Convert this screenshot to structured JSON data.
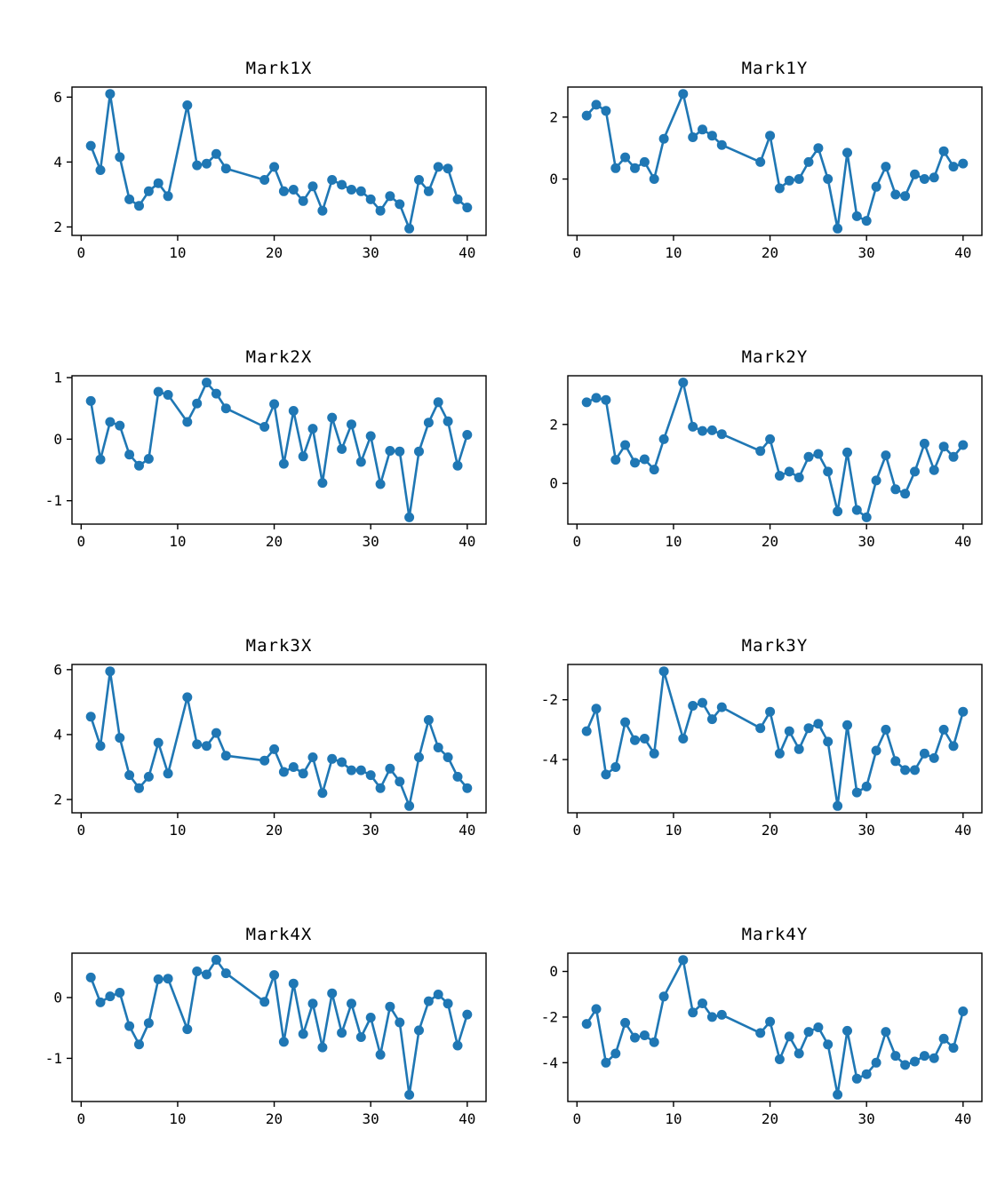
{
  "page": {
    "background": "#ffffff"
  },
  "style": {
    "line_color": "#1f77b4",
    "axis_color": "#000000",
    "text_color": "#000000"
  },
  "chart_data": [
    {
      "type": "line",
      "title": "Mark1X",
      "x": [
        1,
        2,
        3,
        4,
        5,
        6,
        7,
        8,
        9,
        11,
        12,
        13,
        14,
        15,
        19,
        20,
        21,
        22,
        23,
        24,
        25,
        26,
        27,
        28,
        29,
        30,
        31,
        32,
        33,
        34,
        35,
        36,
        37,
        38,
        39,
        40
      ],
      "values": [
        4.5,
        3.75,
        6.1,
        4.15,
        2.85,
        2.65,
        3.1,
        3.35,
        2.95,
        5.75,
        3.9,
        3.95,
        4.25,
        3.8,
        3.45,
        3.85,
        3.1,
        3.15,
        2.8,
        3.25,
        2.5,
        3.45,
        3.3,
        3.15,
        3.1,
        2.85,
        2.5,
        2.95,
        2.7,
        1.95,
        3.45,
        3.1,
        3.85,
        3.8,
        2.85,
        2.6
      ],
      "xticks": [
        0,
        10,
        20,
        30,
        40
      ],
      "yticks": [
        2,
        4,
        6
      ],
      "xlim": [
        -0.95,
        41.95
      ],
      "ylim": [
        1.74,
        6.31
      ],
      "xlabel": "",
      "ylabel": "",
      "grid": false,
      "legend": null
    },
    {
      "type": "line",
      "title": "Mark1Y",
      "x": [
        1,
        2,
        3,
        4,
        5,
        6,
        7,
        8,
        9,
        11,
        12,
        13,
        14,
        15,
        19,
        20,
        21,
        22,
        23,
        24,
        25,
        26,
        27,
        28,
        29,
        30,
        31,
        32,
        33,
        34,
        35,
        36,
        37,
        38,
        39,
        40
      ],
      "values": [
        2.05,
        2.4,
        2.2,
        0.35,
        0.7,
        0.35,
        0.55,
        0.0,
        1.3,
        2.75,
        1.35,
        1.6,
        1.4,
        1.1,
        0.55,
        1.4,
        -0.3,
        -0.05,
        0.0,
        0.55,
        1.0,
        0.0,
        -1.6,
        0.85,
        -1.2,
        -1.35,
        -0.25,
        0.4,
        -0.5,
        -0.55,
        0.15,
        0.0,
        0.05,
        0.9,
        0.4,
        0.5
      ],
      "xticks": [
        0,
        10,
        20,
        30,
        40
      ],
      "yticks": [
        0,
        2
      ],
      "xlim": [
        -0.95,
        41.95
      ],
      "ylim": [
        -1.82,
        2.97
      ],
      "xlabel": "",
      "ylabel": "",
      "grid": false,
      "legend": null
    },
    {
      "type": "line",
      "title": "Mark2X",
      "x": [
        1,
        2,
        3,
        4,
        5,
        6,
        7,
        8,
        9,
        11,
        12,
        13,
        14,
        15,
        19,
        20,
        21,
        22,
        23,
        24,
        25,
        26,
        27,
        28,
        29,
        30,
        31,
        32,
        33,
        34,
        35,
        36,
        37,
        38,
        39,
        40
      ],
      "values": [
        0.62,
        -0.33,
        0.28,
        0.22,
        -0.25,
        -0.43,
        -0.32,
        0.77,
        0.72,
        0.28,
        0.58,
        0.92,
        0.74,
        0.5,
        0.2,
        0.57,
        -0.4,
        0.46,
        -0.28,
        0.17,
        -0.71,
        0.35,
        -0.16,
        0.24,
        -0.37,
        0.05,
        -0.73,
        -0.19,
        -0.2,
        -1.27,
        -0.2,
        0.27,
        0.6,
        0.29,
        -0.43,
        0.07
      ],
      "xticks": [
        0,
        10,
        20,
        30,
        40
      ],
      "yticks": [
        -1,
        0,
        1
      ],
      "xlim": [
        -0.95,
        41.95
      ],
      "ylim": [
        -1.38,
        1.03
      ],
      "xlabel": "",
      "ylabel": "",
      "grid": false,
      "legend": null
    },
    {
      "type": "line",
      "title": "Mark2Y",
      "x": [
        1,
        2,
        3,
        4,
        5,
        6,
        7,
        8,
        9,
        11,
        12,
        13,
        14,
        15,
        19,
        20,
        21,
        22,
        23,
        24,
        25,
        26,
        27,
        28,
        29,
        30,
        31,
        32,
        33,
        34,
        35,
        36,
        37,
        38,
        39,
        40
      ],
      "values": [
        2.75,
        2.9,
        2.83,
        0.8,
        1.3,
        0.7,
        0.82,
        0.47,
        1.5,
        3.42,
        1.92,
        1.78,
        1.8,
        1.67,
        1.1,
        1.5,
        0.26,
        0.4,
        0.2,
        0.9,
        1.0,
        0.4,
        -0.95,
        1.05,
        -0.9,
        -1.15,
        0.1,
        0.95,
        -0.2,
        -0.35,
        0.4,
        1.35,
        0.45,
        1.25,
        0.9,
        1.3
      ],
      "xticks": [
        0,
        10,
        20,
        30,
        40
      ],
      "yticks": [
        0,
        2
      ],
      "xlim": [
        -0.95,
        41.95
      ],
      "ylim": [
        -1.38,
        3.65
      ],
      "xlabel": "",
      "ylabel": "",
      "grid": false,
      "legend": null
    },
    {
      "type": "line",
      "title": "Mark3X",
      "x": [
        1,
        2,
        3,
        4,
        5,
        6,
        7,
        8,
        9,
        11,
        12,
        13,
        14,
        15,
        19,
        20,
        21,
        22,
        23,
        24,
        25,
        26,
        27,
        28,
        29,
        30,
        31,
        32,
        33,
        34,
        35,
        36,
        37,
        38,
        39,
        40
      ],
      "values": [
        4.55,
        3.65,
        5.95,
        3.9,
        2.75,
        2.35,
        2.7,
        3.75,
        2.8,
        5.15,
        3.7,
        3.65,
        4.05,
        3.35,
        3.2,
        3.55,
        2.85,
        3.0,
        2.8,
        3.3,
        2.2,
        3.25,
        3.15,
        2.9,
        2.9,
        2.75,
        2.35,
        2.95,
        2.55,
        1.8,
        3.3,
        4.45,
        3.6,
        3.3,
        2.7,
        2.35
      ],
      "xticks": [
        0,
        10,
        20,
        30,
        40
      ],
      "yticks": [
        2,
        4,
        6
      ],
      "xlim": [
        -0.95,
        41.95
      ],
      "ylim": [
        1.59,
        6.16
      ],
      "xlabel": "",
      "ylabel": "",
      "grid": false,
      "legend": null
    },
    {
      "type": "line",
      "title": "Mark3Y",
      "x": [
        1,
        2,
        3,
        4,
        5,
        6,
        7,
        8,
        9,
        11,
        12,
        13,
        14,
        15,
        19,
        20,
        21,
        22,
        23,
        24,
        25,
        26,
        27,
        28,
        29,
        30,
        31,
        32,
        33,
        34,
        35,
        36,
        37,
        38,
        39,
        40
      ],
      "values": [
        -3.05,
        -2.3,
        -4.5,
        -4.25,
        -2.75,
        -3.35,
        -3.3,
        -3.8,
        -1.05,
        -3.3,
        -2.2,
        -2.1,
        -2.65,
        -2.25,
        -2.95,
        -2.4,
        -3.8,
        -3.05,
        -3.65,
        -2.95,
        -2.8,
        -3.4,
        -5.55,
        -2.85,
        -5.1,
        -4.9,
        -3.7,
        -3.0,
        -4.05,
        -4.35,
        -4.35,
        -3.8,
        -3.95,
        -3.0,
        -3.55,
        -2.4
      ],
      "xticks": [
        0,
        10,
        20,
        30,
        40
      ],
      "yticks": [
        -4,
        -2
      ],
      "xlim": [
        -0.95,
        41.95
      ],
      "ylim": [
        -5.78,
        -0.82
      ],
      "xlabel": "",
      "ylabel": "",
      "grid": false,
      "legend": null
    },
    {
      "type": "line",
      "title": "Mark4X",
      "x": [
        1,
        2,
        3,
        4,
        5,
        6,
        7,
        8,
        9,
        11,
        12,
        13,
        14,
        15,
        19,
        20,
        21,
        22,
        23,
        24,
        25,
        26,
        27,
        28,
        29,
        30,
        31,
        32,
        33,
        34,
        35,
        36,
        37,
        38,
        39,
        40
      ],
      "values": [
        0.33,
        -0.08,
        0.02,
        0.08,
        -0.47,
        -0.77,
        -0.42,
        0.3,
        0.31,
        -0.52,
        0.43,
        0.38,
        0.62,
        0.4,
        -0.07,
        0.37,
        -0.73,
        0.23,
        -0.6,
        -0.1,
        -0.82,
        0.07,
        -0.58,
        -0.1,
        -0.65,
        -0.33,
        -0.94,
        -0.15,
        -0.41,
        -1.6,
        -0.54,
        -0.06,
        0.05,
        -0.1,
        -0.79,
        -0.28
      ],
      "xticks": [
        0,
        10,
        20,
        30,
        40
      ],
      "yticks": [
        -1,
        0
      ],
      "xlim": [
        -0.95,
        41.95
      ],
      "ylim": [
        -1.71,
        0.73
      ],
      "xlabel": "",
      "ylabel": "",
      "grid": false,
      "legend": null
    },
    {
      "type": "line",
      "title": "Mark4Y",
      "x": [
        1,
        2,
        3,
        4,
        5,
        6,
        7,
        8,
        9,
        11,
        12,
        13,
        14,
        15,
        19,
        20,
        21,
        22,
        23,
        24,
        25,
        26,
        27,
        28,
        29,
        30,
        31,
        32,
        33,
        34,
        35,
        36,
        37,
        38,
        39,
        40
      ],
      "values": [
        -2.3,
        -1.65,
        -4.0,
        -3.6,
        -2.25,
        -2.9,
        -2.8,
        -3.1,
        -1.1,
        0.5,
        -1.8,
        -1.4,
        -2.0,
        -1.9,
        -2.7,
        -2.2,
        -3.85,
        -2.85,
        -3.6,
        -2.65,
        -2.45,
        -3.2,
        -5.4,
        -2.6,
        -4.7,
        -4.5,
        -4.0,
        -2.65,
        -3.7,
        -4.1,
        -3.95,
        -3.7,
        -3.8,
        -2.95,
        -3.35,
        -1.75
      ],
      "xticks": [
        0,
        10,
        20,
        30,
        40
      ],
      "yticks": [
        -4,
        -2,
        0
      ],
      "xlim": [
        -0.95,
        41.95
      ],
      "ylim": [
        -5.7,
        0.8
      ],
      "xlabel": "",
      "ylabel": "",
      "grid": false,
      "legend": null
    }
  ]
}
